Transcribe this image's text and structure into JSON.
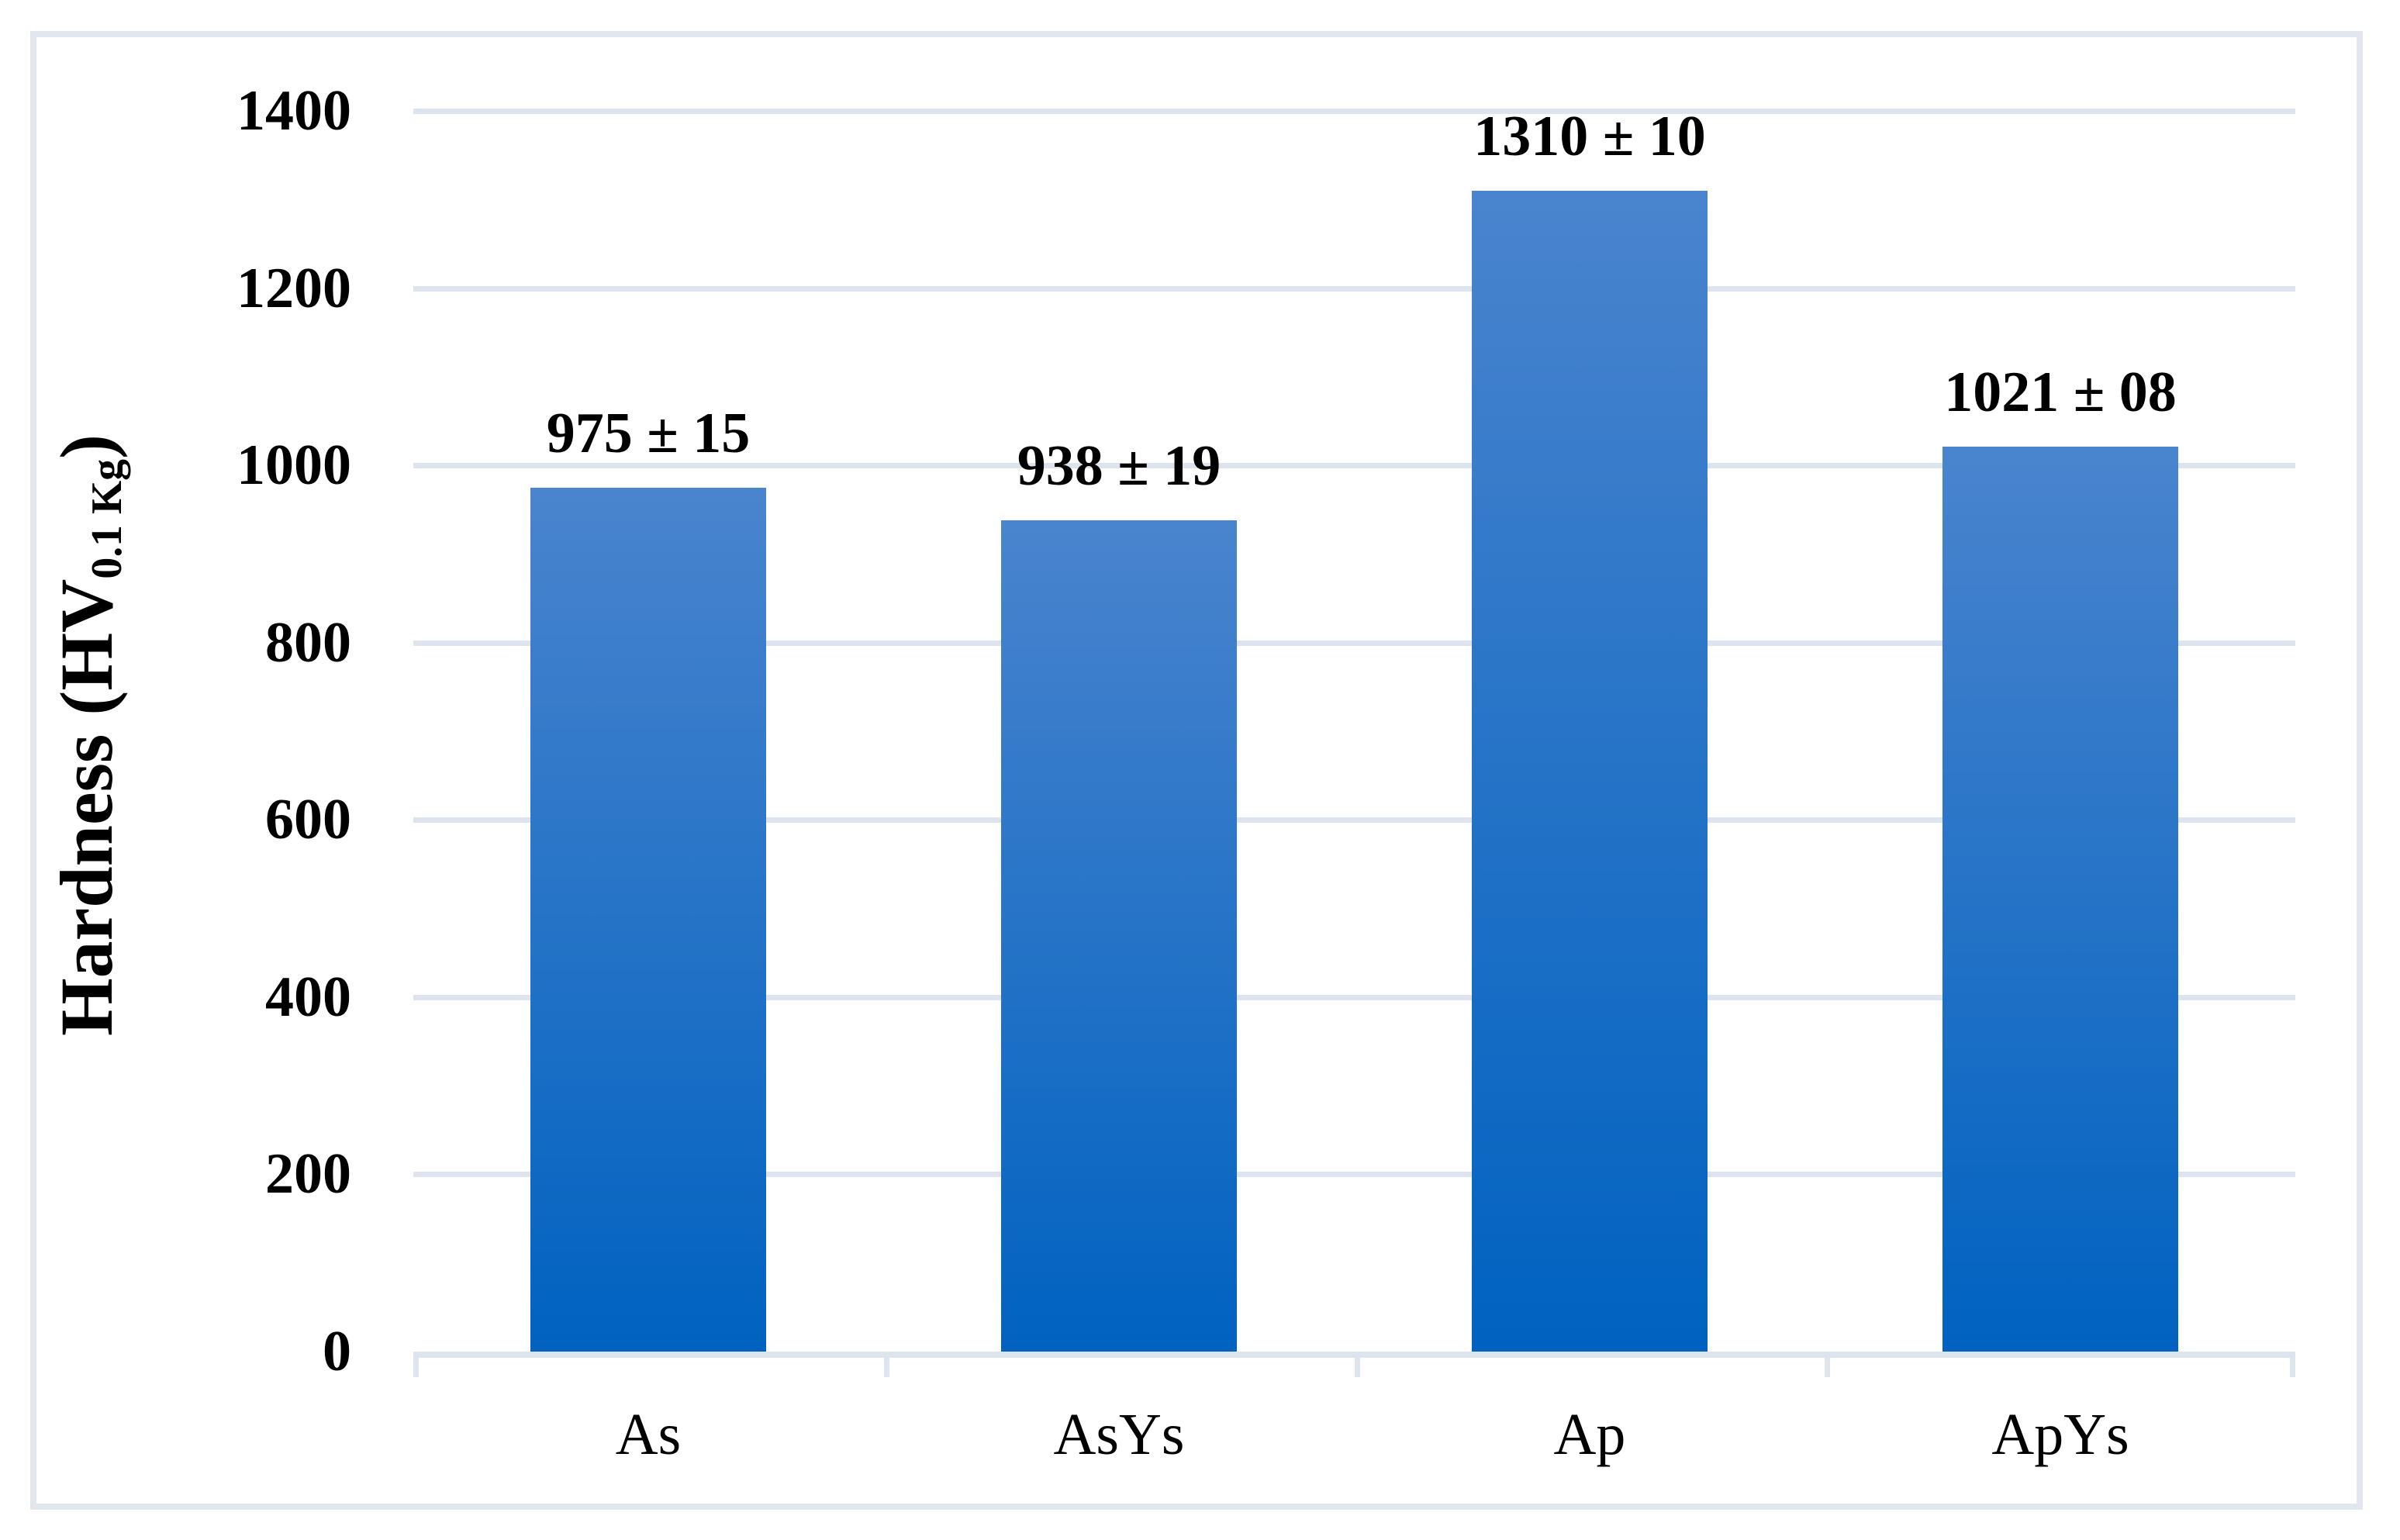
{
  "chart_data": {
    "type": "bar",
    "title": "",
    "categories": [
      "As",
      "AsYs",
      "Ap",
      "ApYs"
    ],
    "values": [
      975,
      938,
      1310,
      1021
    ],
    "value_labels": [
      "975 ± 15",
      "938 ± 19",
      "1310 ± 10",
      "1021 ± 08"
    ],
    "errors": [
      15,
      19,
      10,
      8
    ],
    "xlabel": "",
    "ylabel": "Hardness (HV 0.1 Kg)",
    "ylabel_parts": {
      "main": "Hardness (HV",
      "subscript": "0.1 Kg",
      "close": ")"
    },
    "ylim": [
      0,
      1400
    ],
    "yticks": [
      0,
      200,
      400,
      600,
      800,
      1000,
      1200,
      1400
    ],
    "grid": true,
    "legend": false,
    "colors": {
      "bar_gradient_top": "#4a84ce",
      "bar_gradient_bottom": "#0062c0",
      "gridline": "#dde4ee",
      "axis_line": "#dde4ee",
      "figure_border": "#e2e7ee",
      "text": "#000000"
    }
  }
}
